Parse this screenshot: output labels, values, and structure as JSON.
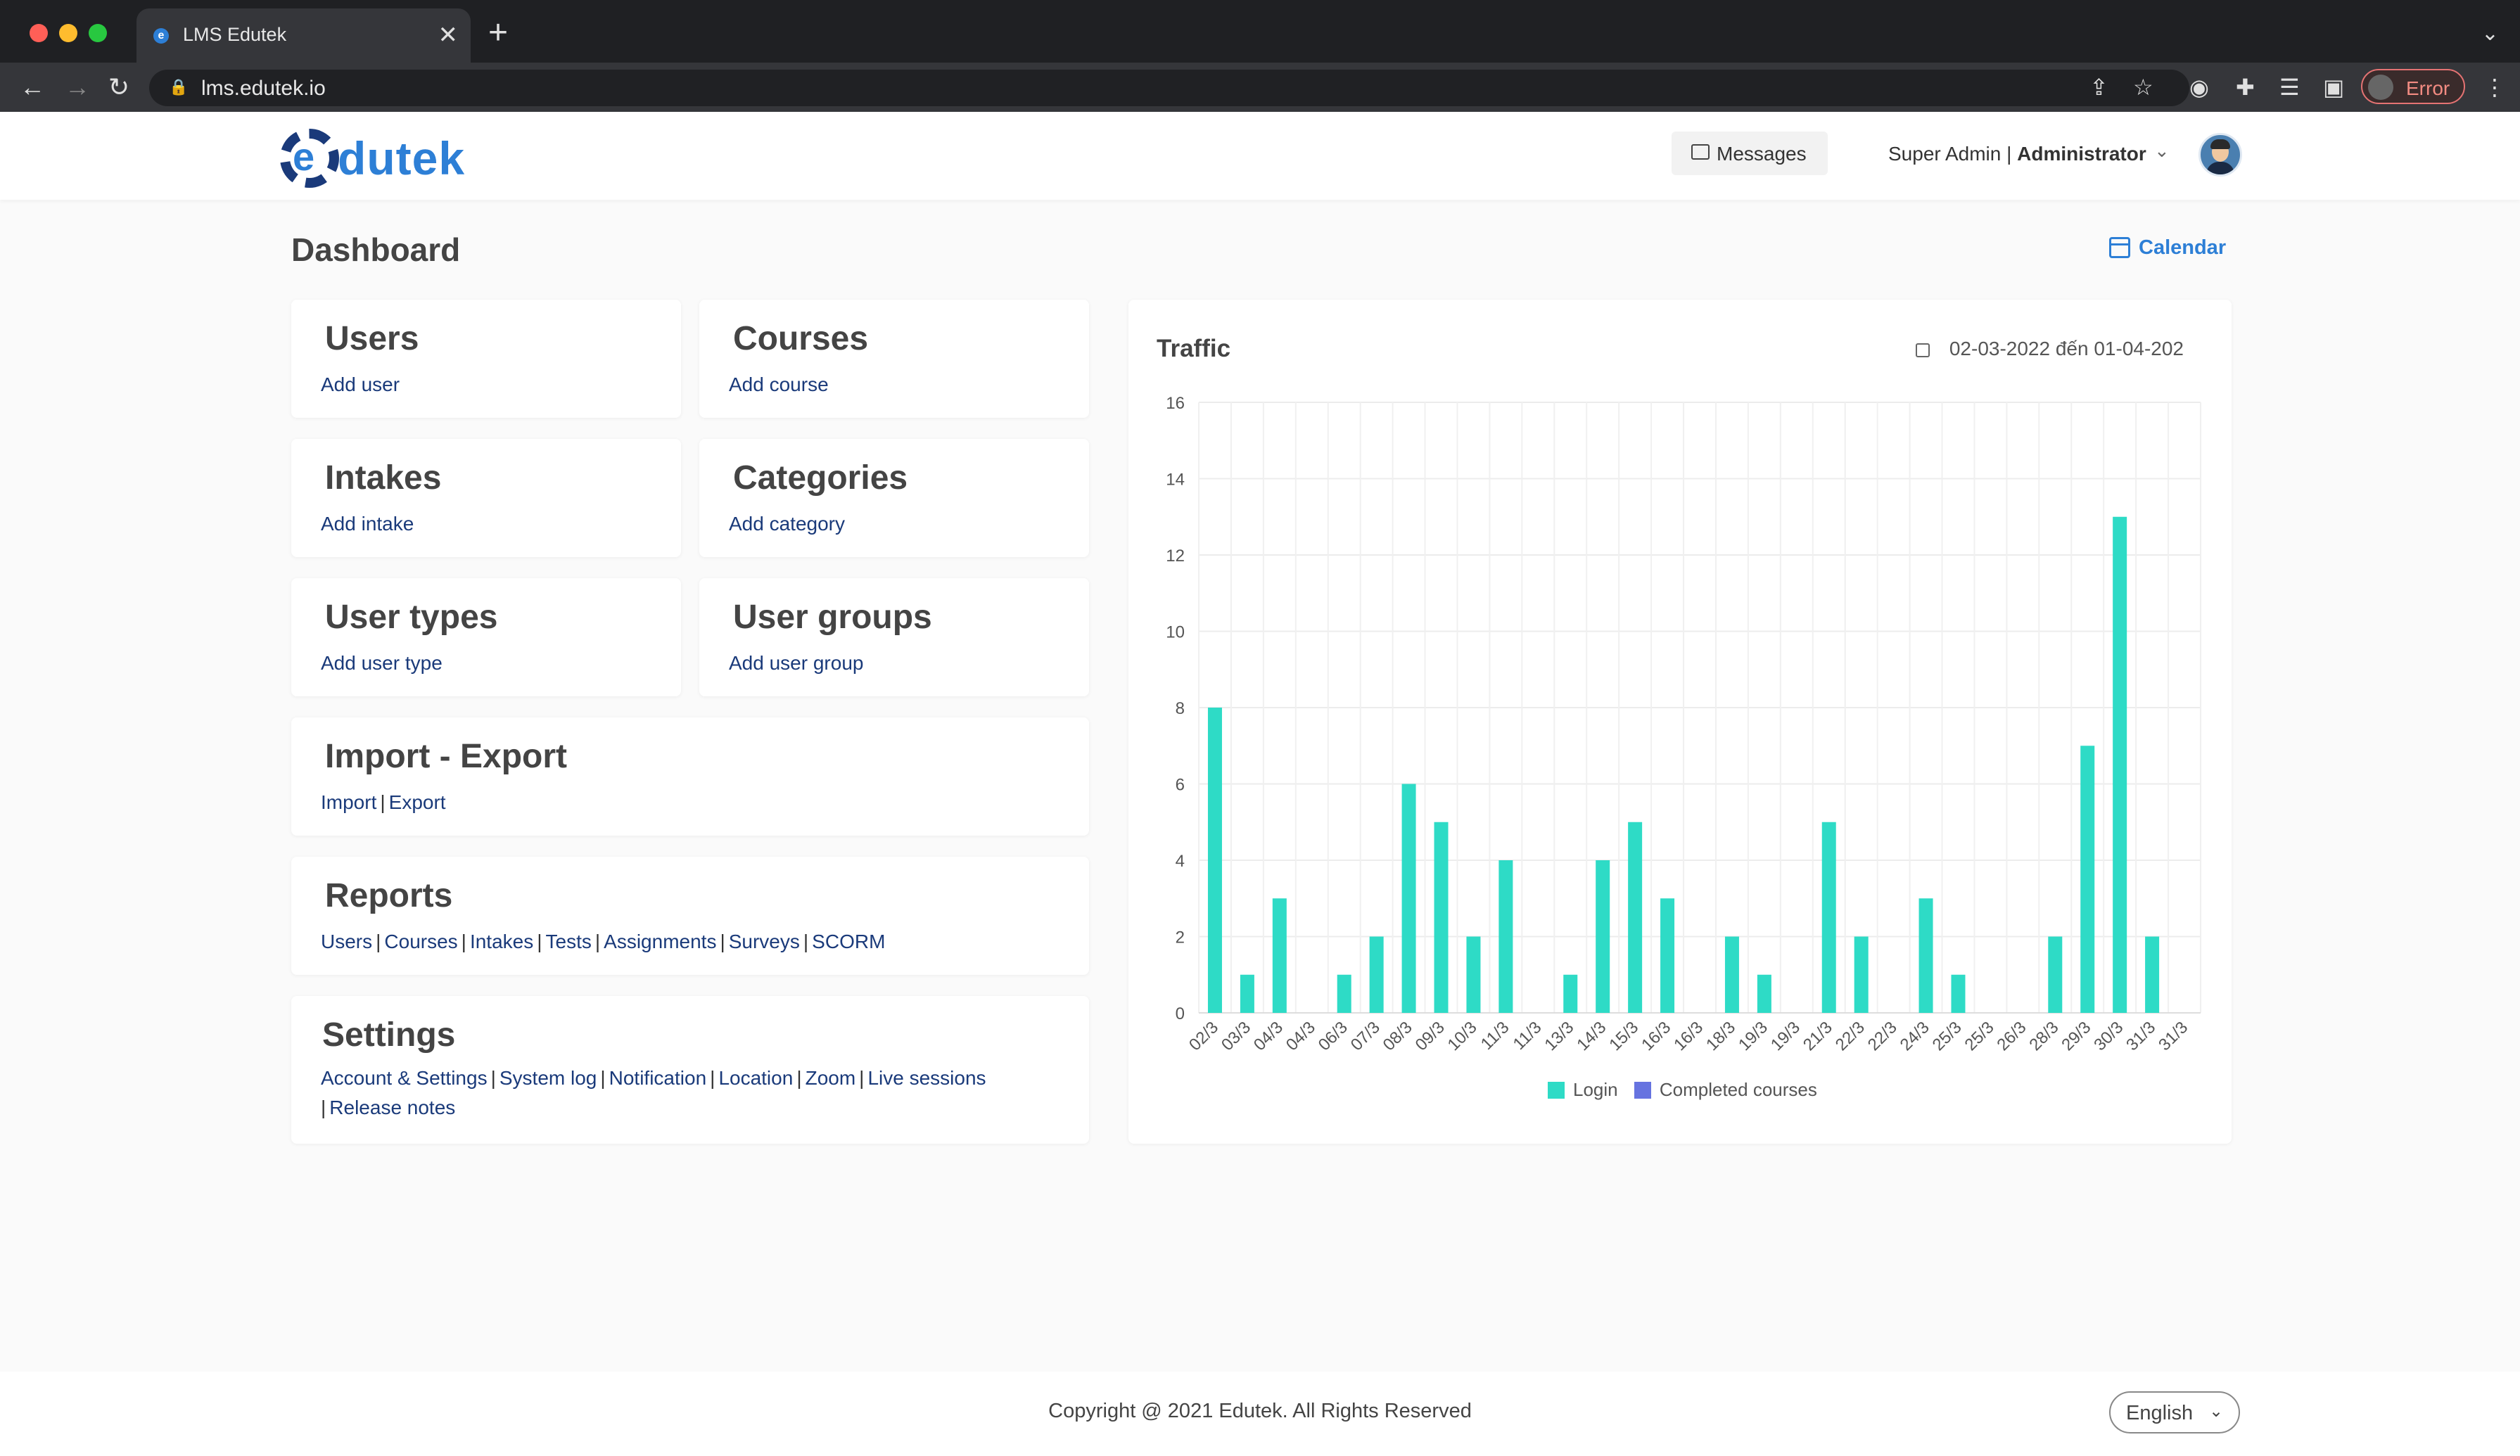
{
  "browser": {
    "tab_title": "LMS Edutek",
    "url": "lms.edutek.io",
    "error_label": "Error",
    "tab_close": "✕",
    "new_tab": "+"
  },
  "header": {
    "logo_text": "dutek",
    "logo_letter": "e",
    "messages_label": "Messages",
    "user_name": "Super Admin",
    "user_role": "Administrator"
  },
  "dashboard": {
    "title": "Dashboard",
    "calendar_label": "Calendar"
  },
  "cards": {
    "users": {
      "title": "Users",
      "link": "Add user"
    },
    "courses": {
      "title": "Courses",
      "link": "Add course"
    },
    "intakes": {
      "title": "Intakes",
      "link": "Add intake"
    },
    "categories": {
      "title": "Categories",
      "link": "Add category"
    },
    "user_types": {
      "title": "User types",
      "link": "Add user type"
    },
    "user_groups": {
      "title": "User groups",
      "link": "Add user group"
    },
    "import_export": {
      "title": "Import - Export",
      "links": [
        "Import",
        "Export"
      ]
    },
    "reports": {
      "title": "Reports",
      "links": [
        "Users",
        "Courses",
        "Intakes",
        "Tests",
        "Assignments",
        "Surveys",
        "SCORM"
      ]
    },
    "settings": {
      "title": "Settings",
      "links": [
        "Account & Settings",
        "System log",
        "Notification",
        "Location",
        "Zoom",
        "Live sessions",
        "Release notes"
      ]
    }
  },
  "traffic": {
    "title": "Traffic",
    "date_range": "02-03-2022 đến 01-04-202"
  },
  "chart_data": {
    "type": "bar",
    "title": "Traffic",
    "categories": [
      "02/3",
      "03/3",
      "04/3",
      "04/3",
      "06/3",
      "07/3",
      "08/3",
      "09/3",
      "10/3",
      "11/3",
      "11/3",
      "13/3",
      "14/3",
      "15/3",
      "16/3",
      "16/3",
      "18/3",
      "19/3",
      "19/3",
      "21/3",
      "22/3",
      "22/3",
      "24/3",
      "25/3",
      "25/3",
      "26/3",
      "28/3",
      "29/3",
      "30/3",
      "31/3",
      "31/3"
    ],
    "series": [
      {
        "name": "Login",
        "color": "#2edbc6",
        "values": [
          8,
          1,
          3,
          0,
          1,
          2,
          6,
          5,
          2,
          4,
          0,
          1,
          4,
          5,
          3,
          0,
          2,
          1,
          0,
          5,
          2,
          0,
          3,
          1,
          0,
          0,
          2,
          7,
          13,
          2,
          0
        ]
      },
      {
        "name": "Completed courses",
        "color": "#6673e0",
        "values": [
          0,
          0,
          0,
          0,
          0,
          0,
          0,
          0,
          0,
          0,
          0,
          0,
          0,
          0,
          0,
          0,
          0,
          0,
          0,
          0,
          0,
          0,
          0,
          0,
          0,
          0,
          0,
          0,
          0,
          0,
          0
        ]
      }
    ],
    "ylim": [
      0,
      16
    ],
    "yticks": [
      0,
      2,
      4,
      6,
      8,
      10,
      12,
      14,
      16
    ],
    "grid": true,
    "legend": "bottom"
  },
  "footer": {
    "copyright": "Copyright @ 2021 Edutek. All Rights Reserved",
    "language": "English"
  }
}
